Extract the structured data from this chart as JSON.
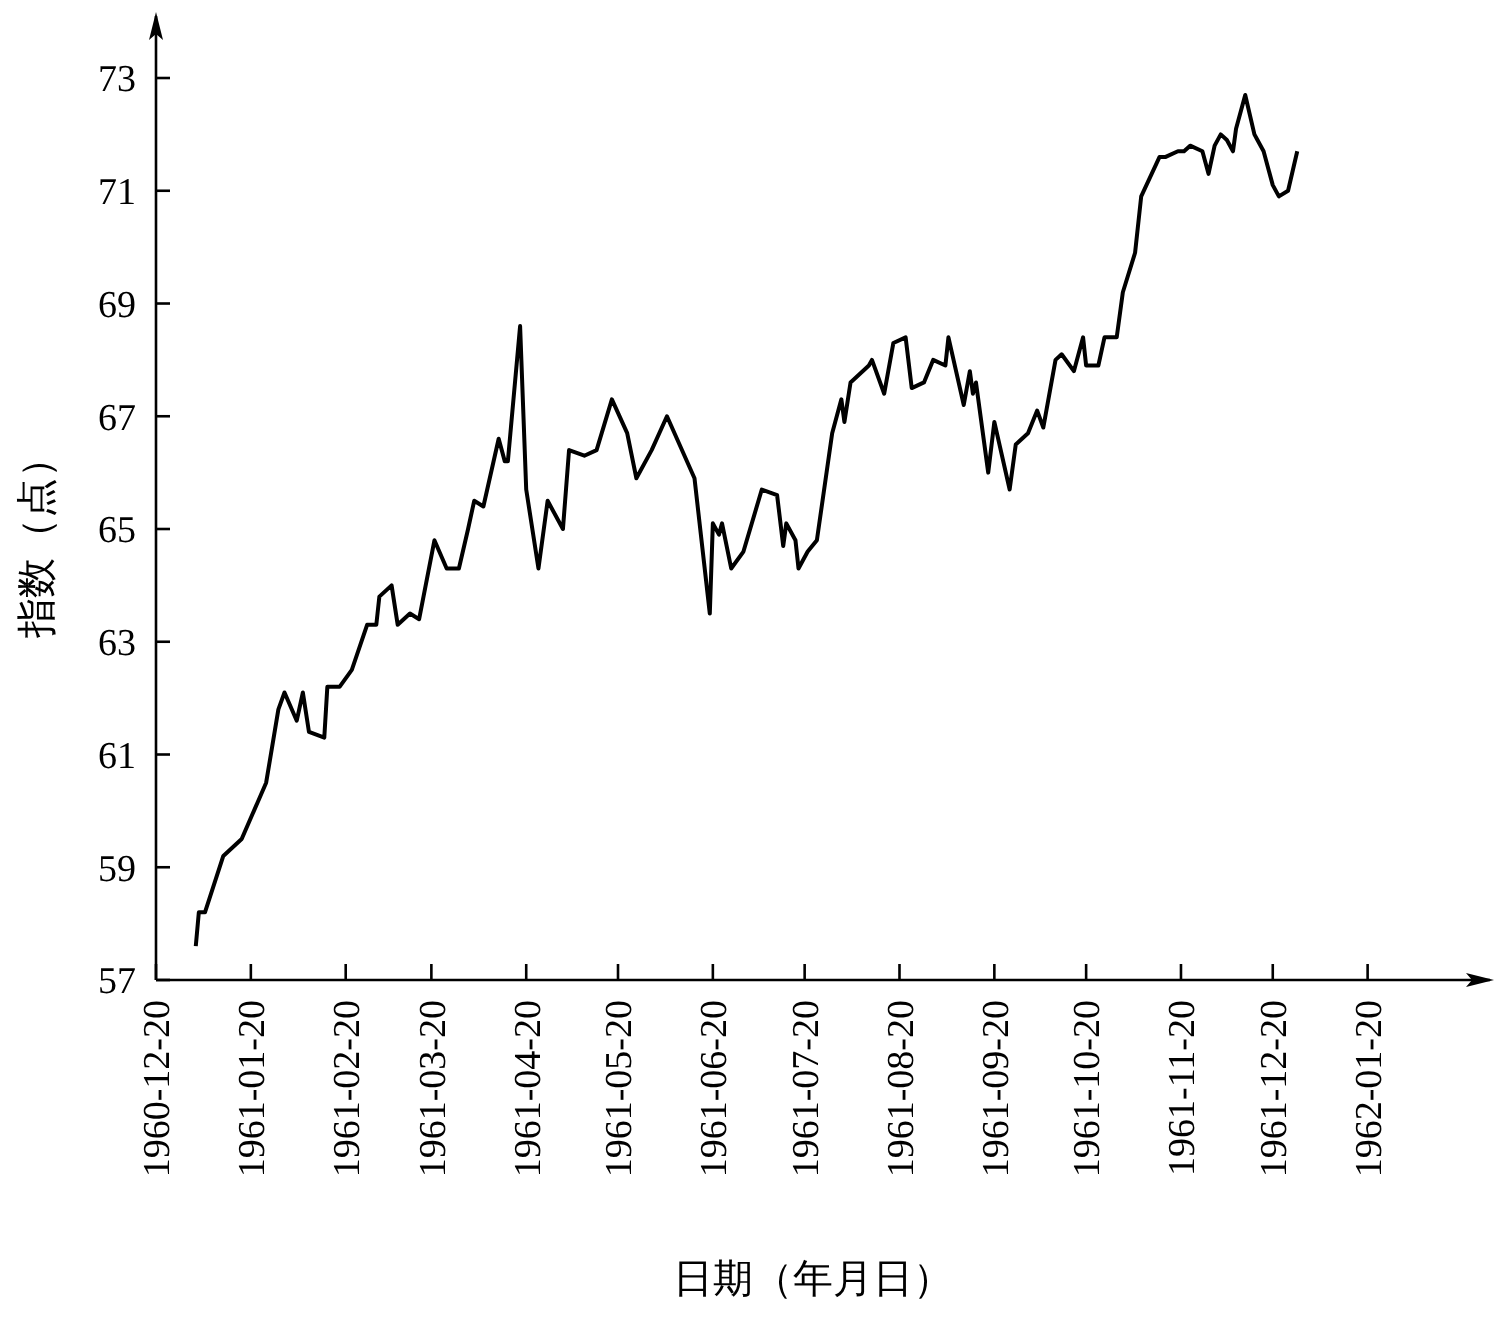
{
  "chart_data": {
    "type": "line",
    "xlabel": "日期（年月日）",
    "ylabel": "指数（点）",
    "xlim": [
      "1960-12-20",
      "1962-03-01"
    ],
    "ylim": [
      57,
      74.1
    ],
    "xticks": [
      "1960-12-20",
      "1961-01-20",
      "1961-02-20",
      "1961-03-20",
      "1961-04-20",
      "1961-05-20",
      "1961-06-20",
      "1961-07-20",
      "1961-08-20",
      "1961-09-20",
      "1961-10-20",
      "1961-11-20",
      "1961-12-20",
      "1962-01-20"
    ],
    "yticks": [
      57,
      59,
      61,
      63,
      65,
      67,
      69,
      71,
      73
    ],
    "grid": false,
    "marker": "none",
    "line_style": "solid",
    "series": [
      {
        "color": "#000000",
        "x": [
          "1961-01-02",
          "1961-01-03",
          "1961-01-05",
          "1961-01-11",
          "1961-01-17",
          "1961-01-25",
          "1961-01-29",
          "1961-01-31",
          "1961-02-04",
          "1961-02-06",
          "1961-02-08",
          "1961-02-13",
          "1961-02-14",
          "1961-02-18",
          "1961-02-22",
          "1961-02-27",
          "1961-03-02",
          "1961-03-03",
          "1961-03-07",
          "1961-03-09",
          "1961-03-13",
          "1961-03-16",
          "1961-03-21",
          "1961-03-25",
          "1961-03-29",
          "1961-04-01",
          "1961-04-03",
          "1961-04-06",
          "1961-04-11",
          "1961-04-13",
          "1961-04-14",
          "1961-04-18",
          "1961-04-20",
          "1961-04-24",
          "1961-04-27",
          "1961-05-02",
          "1961-05-04",
          "1961-05-09",
          "1961-05-13",
          "1961-05-18",
          "1961-05-23",
          "1961-05-26",
          "1961-05-31",
          "1961-06-05",
          "1961-06-14",
          "1961-06-19",
          "1961-06-20",
          "1961-06-22",
          "1961-06-23",
          "1961-06-26",
          "1961-06-30",
          "1961-07-06",
          "1961-07-11",
          "1961-07-13",
          "1961-07-14",
          "1961-07-17",
          "1961-07-18",
          "1961-07-21",
          "1961-07-24",
          "1961-07-29",
          "1961-08-01",
          "1961-08-02",
          "1961-08-04",
          "1961-08-10",
          "1961-08-11",
          "1961-08-15",
          "1961-08-18",
          "1961-08-22",
          "1961-08-24",
          "1961-08-28",
          "1961-08-31",
          "1961-09-04",
          "1961-09-05",
          "1961-09-10",
          "1961-09-12",
          "1961-09-13",
          "1961-09-14",
          "1961-09-18",
          "1961-09-20",
          "1961-09-25",
          "1961-09-27",
          "1961-10-01",
          "1961-10-04",
          "1961-10-06",
          "1961-10-10",
          "1961-10-12",
          "1961-10-16",
          "1961-10-19",
          "1961-10-20",
          "1961-10-24",
          "1961-10-26",
          "1961-10-30",
          "1961-11-01",
          "1961-11-05",
          "1961-11-07",
          "1961-11-13",
          "1961-11-15",
          "1961-11-19",
          "1961-11-21",
          "1961-11-23",
          "1961-11-27",
          "1961-11-29",
          "1961-12-01",
          "1961-12-03",
          "1961-12-05",
          "1961-12-07",
          "1961-12-08",
          "1961-12-11",
          "1961-12-14",
          "1961-12-15",
          "1961-12-17",
          "1961-12-20",
          "1961-12-22",
          "1961-12-25",
          "1961-12-28"
        ],
        "values": [
          57.6,
          58.2,
          58.2,
          59.2,
          59.5,
          60.5,
          61.8,
          62.1,
          61.6,
          62.1,
          61.4,
          61.3,
          62.2,
          62.2,
          62.5,
          63.3,
          63.3,
          63.8,
          64.0,
          63.3,
          63.5,
          63.4,
          64.8,
          64.3,
          64.3,
          65.0,
          65.5,
          65.4,
          66.6,
          66.2,
          66.2,
          68.6,
          65.7,
          64.3,
          65.5,
          65.0,
          66.4,
          66.3,
          66.4,
          67.3,
          66.7,
          65.9,
          66.4,
          67.0,
          65.9,
          63.5,
          65.1,
          64.9,
          65.1,
          64.3,
          64.6,
          65.7,
          65.6,
          64.7,
          65.1,
          64.8,
          64.3,
          64.6,
          64.8,
          66.7,
          67.3,
          66.9,
          67.6,
          67.9,
          68.0,
          67.4,
          68.3,
          68.4,
          67.5,
          67.6,
          68.0,
          67.9,
          68.4,
          67.2,
          67.8,
          67.4,
          67.6,
          66.0,
          66.9,
          65.7,
          66.5,
          66.7,
          67.1,
          66.8,
          68.0,
          68.1,
          67.8,
          68.4,
          67.9,
          67.9,
          68.4,
          68.4,
          69.2,
          69.9,
          70.9,
          71.6,
          71.6,
          71.7,
          71.7,
          71.8,
          71.7,
          71.3,
          71.8,
          72.0,
          71.9,
          71.7,
          72.1,
          72.7,
          72.0,
          71.9,
          71.7,
          71.1,
          70.9,
          71.0,
          71.7
        ]
      }
    ]
  }
}
